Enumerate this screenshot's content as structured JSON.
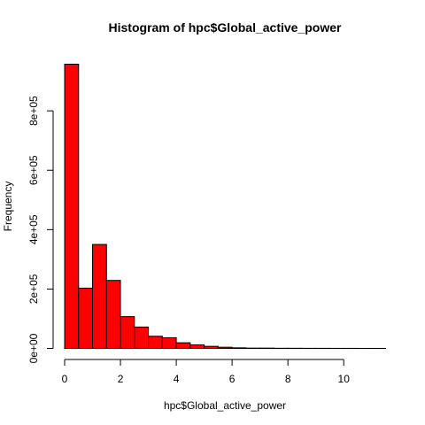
{
  "chart_data": {
    "type": "bar",
    "title": "Histogram of hpc$Global_active_power",
    "xlabel": "hpc$Global_active_power",
    "ylabel": "Frequency",
    "bar_color": "#ff0000",
    "xlim": [
      0,
      11.5
    ],
    "ylim": [
      0,
      960000
    ],
    "x_ticks": [
      0,
      2,
      4,
      6,
      8,
      10
    ],
    "x_tick_labels": [
      "0",
      "2",
      "4",
      "6",
      "8",
      "10"
    ],
    "y_ticks": [
      0,
      200000,
      400000,
      600000,
      800000
    ],
    "y_tick_labels": [
      "0e+00",
      "2e+05",
      "4e+05",
      "6e+05",
      "8e+05"
    ],
    "bin_edges": [
      0,
      0.5,
      1,
      1.5,
      2,
      2.5,
      3,
      3.5,
      4,
      4.5,
      5,
      5.5,
      6,
      6.5,
      7,
      7.5,
      8,
      8.5,
      9,
      9.5,
      10,
      10.5,
      11,
      11.5
    ],
    "values": [
      957000,
      203000,
      350000,
      229000,
      107000,
      72000,
      41000,
      36000,
      19000,
      12000,
      7000,
      4000,
      2000,
      1000,
      1000,
      500,
      500,
      300,
      300,
      200,
      200,
      100,
      100
    ]
  }
}
